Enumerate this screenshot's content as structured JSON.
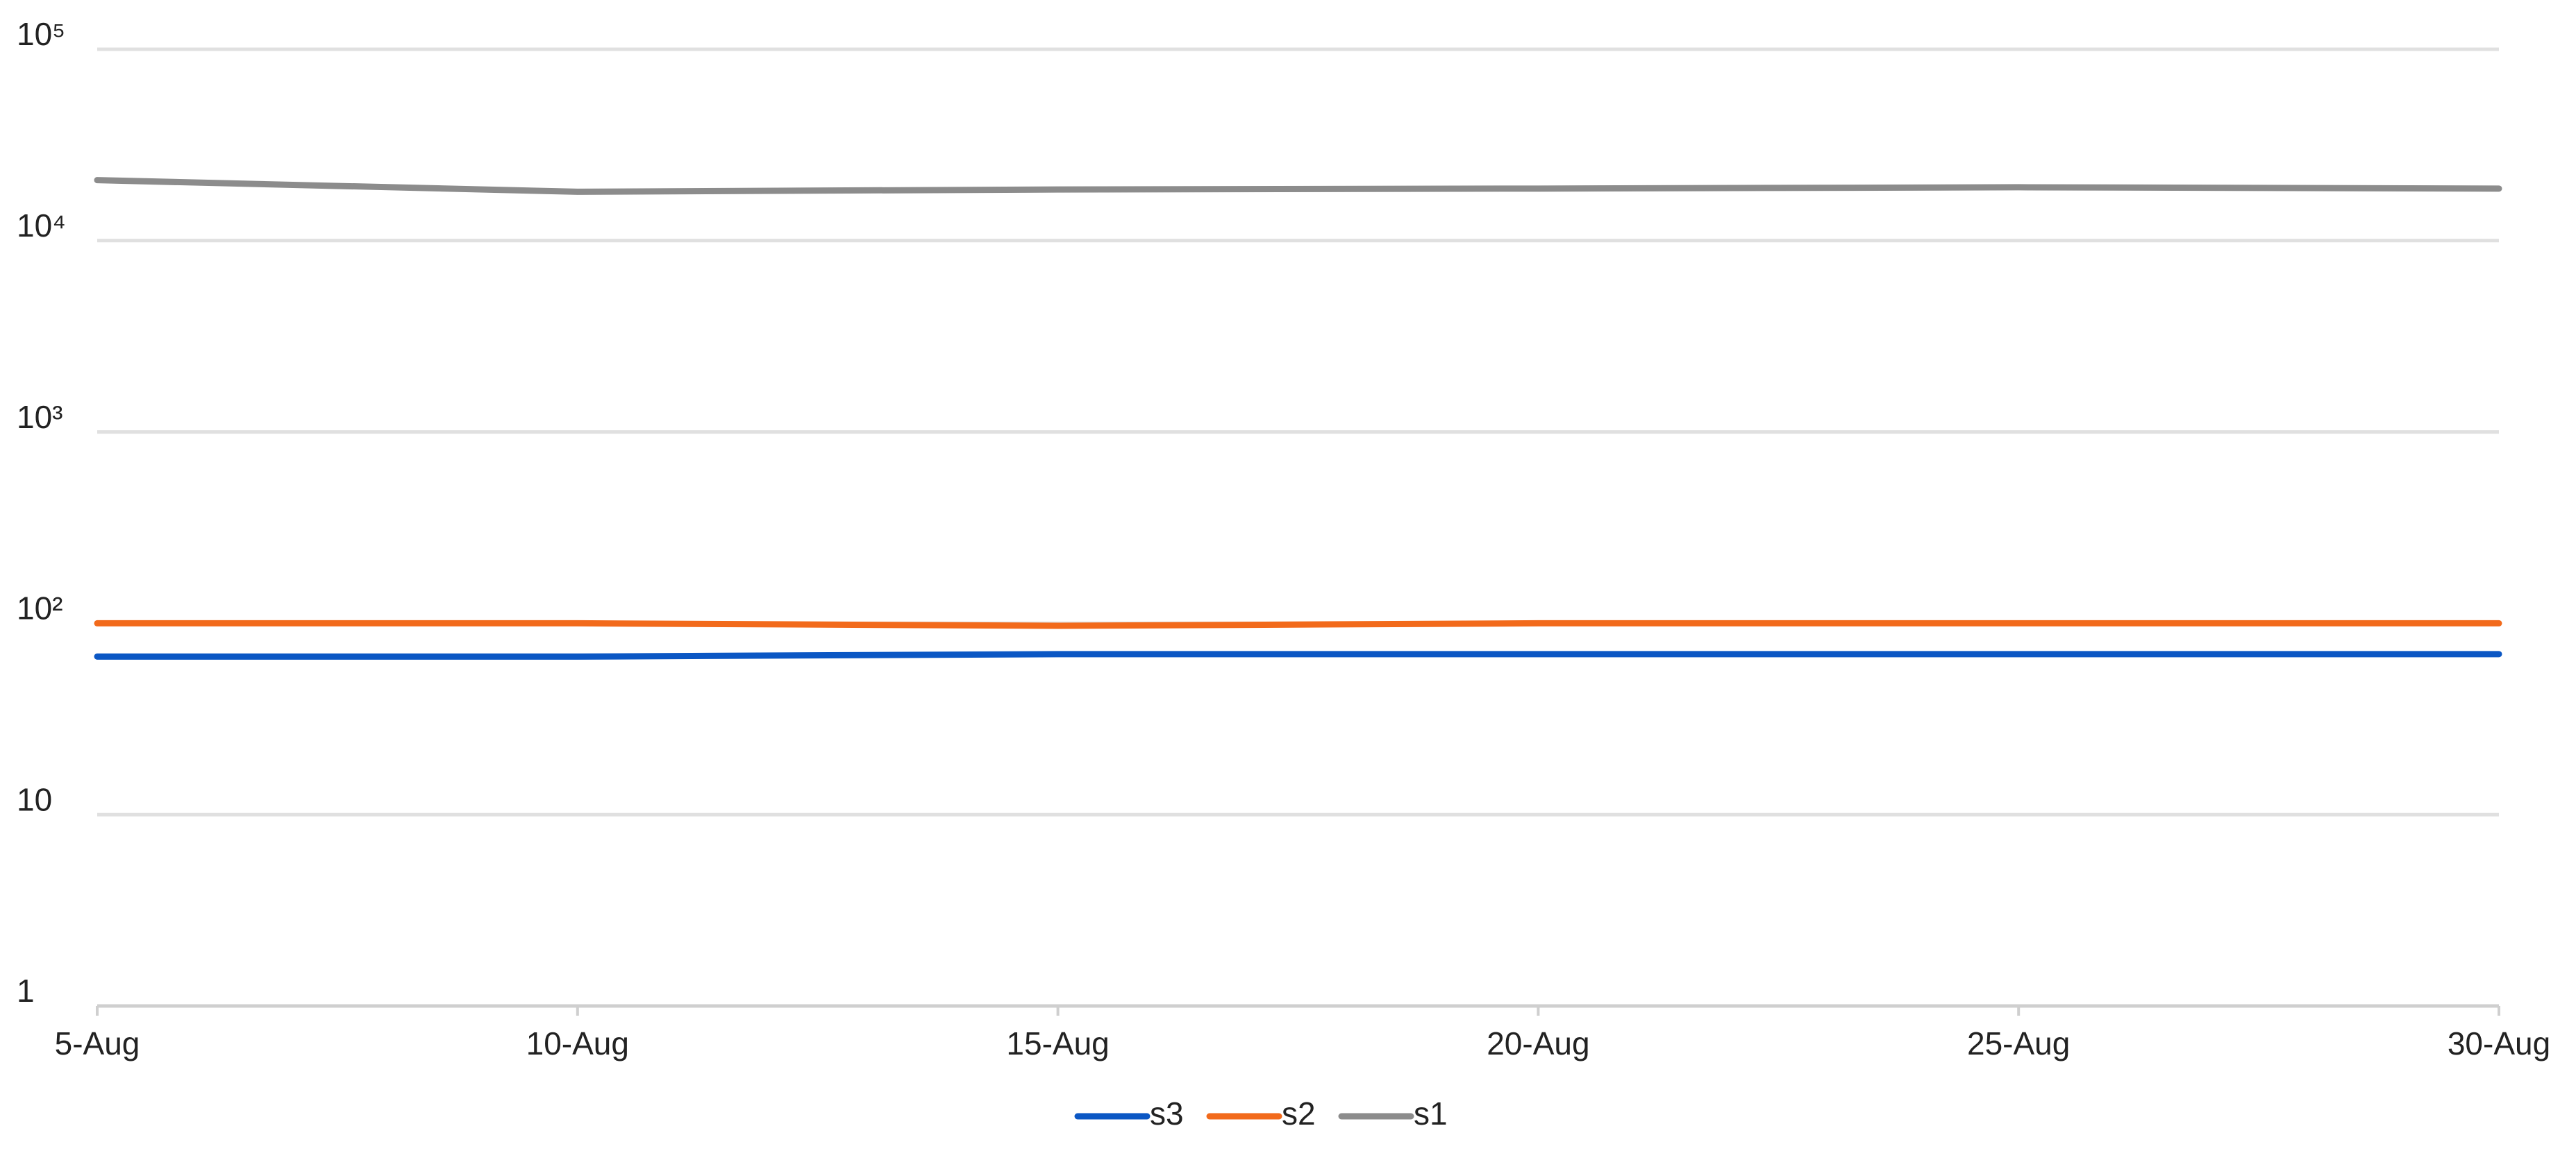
{
  "chart_data": {
    "type": "line",
    "categories": [
      "5-Aug",
      "10-Aug",
      "15-Aug",
      "20-Aug",
      "25-Aug",
      "30-Aug"
    ],
    "series": [
      {
        "name": "s3",
        "color": "#0b57c4",
        "values": [
          67,
          67,
          69,
          69,
          69,
          69
        ]
      },
      {
        "name": "s2",
        "color": "#f26a1b",
        "values": [
          100,
          100,
          97,
          100,
          100,
          100
        ]
      },
      {
        "name": "s1",
        "color": "#8c8c8c",
        "values": [
          20700,
          18000,
          18500,
          18700,
          19000,
          18700
        ]
      }
    ],
    "yscale": "log",
    "ylim": [
      1,
      100000
    ],
    "yticks": [
      1,
      10,
      {
        "value": 100,
        "label": "10²"
      },
      {
        "value": 1000,
        "label": "10³"
      },
      {
        "value": 10000,
        "label": "10⁴"
      },
      {
        "value": 100000,
        "label": "10⁵"
      }
    ],
    "grid": true,
    "legend": "bottom"
  }
}
